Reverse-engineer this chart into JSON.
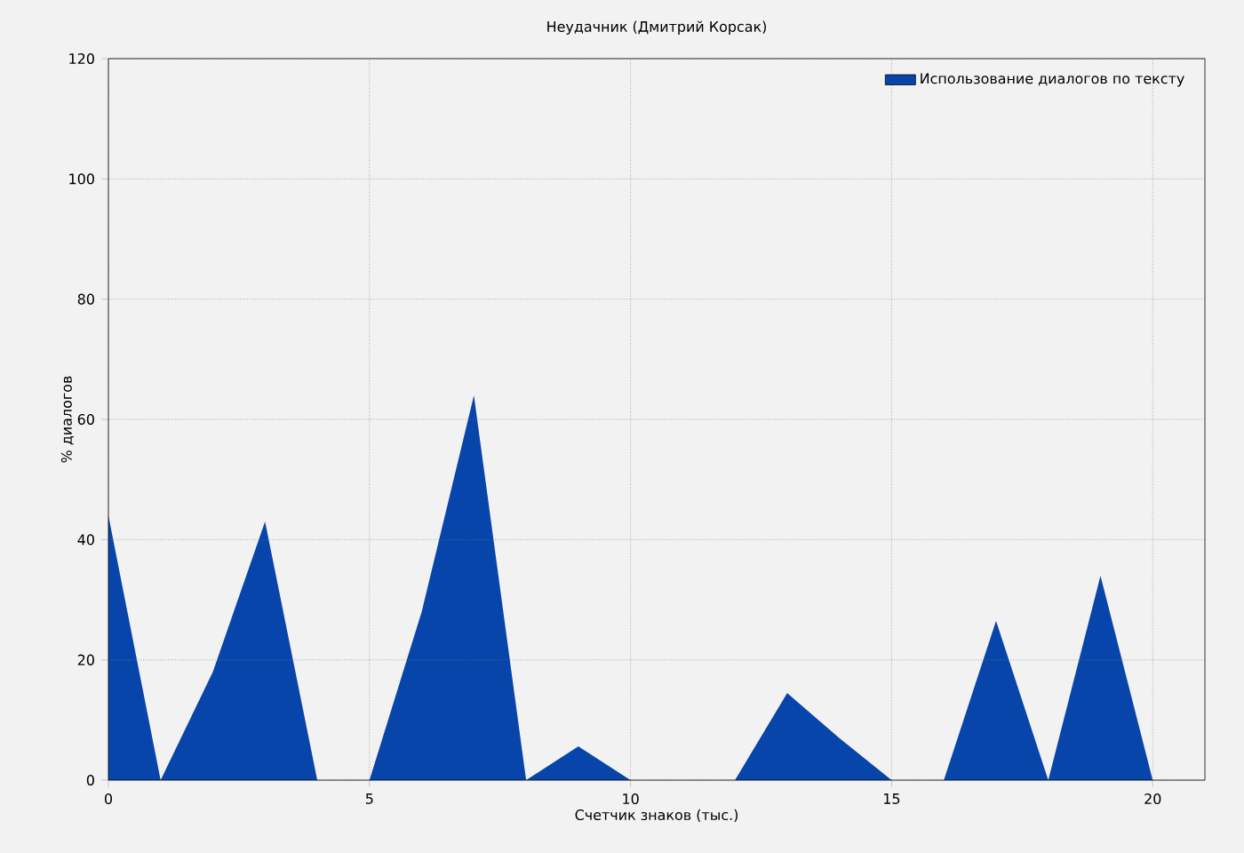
{
  "chart_data": {
    "type": "area",
    "title": "Неудачник (Дмитрий Корсак)",
    "xlabel": "Счетчик знаков (тыс.)",
    "ylabel": "% диалогов",
    "x": [
      0,
      1,
      2,
      3,
      4,
      5,
      6,
      7,
      8,
      9,
      10,
      11,
      12,
      13,
      14,
      15,
      16,
      17,
      18,
      19,
      20
    ],
    "series": [
      {
        "name": "Использование диалогов по тексту",
        "color": "#0745ab",
        "values": [
          44,
          0,
          18,
          43,
          0,
          0,
          28,
          64,
          0,
          5.6,
          0,
          0,
          0,
          14.5,
          7,
          0,
          0,
          26.5,
          0,
          34,
          0
        ]
      }
    ],
    "xlim": [
      0,
      21
    ],
    "ylim": [
      0,
      120
    ],
    "xticks": [
      0,
      5,
      10,
      15,
      20
    ],
    "yticks": [
      0,
      20,
      40,
      60,
      80,
      100,
      120
    ],
    "grid": true,
    "legend": "top right"
  }
}
